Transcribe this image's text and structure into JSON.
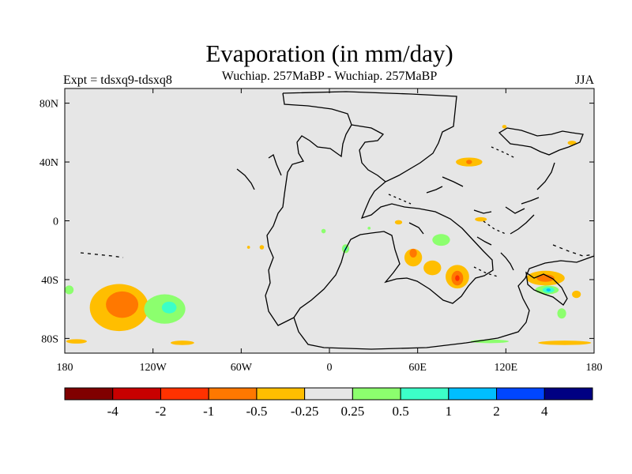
{
  "chart_data": {
    "type": "heatmap",
    "title": "Evaporation (in mm/day)",
    "subtitle": "Wuchiap. 257MaBP - Wuchiap. 257MaBP",
    "left_label": "Expt = tdsxq9-tdsxq8",
    "right_label": "JJA",
    "x_axis": {
      "range": [
        -180,
        180
      ],
      "ticks": [
        {
          "value": -180,
          "label": "180"
        },
        {
          "value": -120,
          "label": "120W"
        },
        {
          "value": -60,
          "label": "60W"
        },
        {
          "value": 0,
          "label": "0"
        },
        {
          "value": 60,
          "label": "60E"
        },
        {
          "value": 120,
          "label": "120E"
        },
        {
          "value": 180,
          "label": "180"
        }
      ]
    },
    "y_axis": {
      "range": [
        -90,
        90
      ],
      "ticks": [
        {
          "value": 80,
          "label": "80N"
        },
        {
          "value": 40,
          "label": "40N"
        },
        {
          "value": 0,
          "label": "0"
        },
        {
          "value": -40,
          "label": "40S"
        },
        {
          "value": -80,
          "label": "80S"
        }
      ]
    },
    "colorbar": {
      "colors": [
        "#800000",
        "#c80000",
        "#ff3200",
        "#ff7800",
        "#ffbe00",
        "#e6e6e6",
        "#8cff6e",
        "#3cffc8",
        "#00beff",
        "#0046ff",
        "#000082"
      ],
      "labels": [
        "-4",
        "-2",
        "-1",
        "-0.5",
        "-0.25",
        "0.25",
        "0.5",
        "1",
        "2",
        "4"
      ]
    },
    "background_color": "#e6e6e6",
    "anomalies": [
      {
        "lon": -143,
        "lat": -59,
        "level": -0.3,
        "rx": 20,
        "ry": 16
      },
      {
        "lon": -141,
        "lat": -57,
        "level": -0.6,
        "rx": 11,
        "ry": 9
      },
      {
        "lon": -112,
        "lat": -60,
        "level": 0.3,
        "rx": 14,
        "ry": 10
      },
      {
        "lon": -109,
        "lat": -59,
        "level": 0.6,
        "rx": 5,
        "ry": 4
      },
      {
        "lon": -172,
        "lat": -82,
        "level": -0.3,
        "rx": 7,
        "ry": 1.5
      },
      {
        "lon": -100,
        "lat": -83,
        "level": -0.3,
        "rx": 8,
        "ry": 1.5
      },
      {
        "lon": -177,
        "lat": -47,
        "level": 0.3,
        "rx": 3,
        "ry": 3
      },
      {
        "lon": -46,
        "lat": -18,
        "level": -0.3,
        "rx": 1.5,
        "ry": 1.5
      },
      {
        "lon": -4,
        "lat": -7,
        "level": 0.3,
        "rx": 1.5,
        "ry": 1.5
      },
      {
        "lon": 11,
        "lat": -19,
        "level": 0.3,
        "rx": 2.5,
        "ry": 3
      },
      {
        "lon": 11,
        "lat": -19,
        "level": 0.6,
        "rx": 1,
        "ry": 1.5
      },
      {
        "lon": 27,
        "lat": -5,
        "level": 0.3,
        "rx": 1,
        "ry": 1
      },
      {
        "lon": 57,
        "lat": -25,
        "level": -0.3,
        "rx": 6,
        "ry": 6
      },
      {
        "lon": 57,
        "lat": -22,
        "level": -0.6,
        "rx": 2.5,
        "ry": 3
      },
      {
        "lon": 70,
        "lat": -32,
        "level": -0.3,
        "rx": 6,
        "ry": 5
      },
      {
        "lon": 87,
        "lat": -38,
        "level": -0.3,
        "rx": 8,
        "ry": 8
      },
      {
        "lon": 87,
        "lat": -39,
        "level": -0.6,
        "rx": 4,
        "ry": 5
      },
      {
        "lon": 87,
        "lat": -39,
        "level": -1.2,
        "rx": 1.5,
        "ry": 2
      },
      {
        "lon": 76,
        "lat": -13,
        "level": 0.3,
        "rx": 6,
        "ry": 4
      },
      {
        "lon": 103,
        "lat": 1,
        "level": -0.3,
        "rx": 4,
        "ry": 1.5
      },
      {
        "lon": 47,
        "lat": -1,
        "level": -0.3,
        "rx": 2.5,
        "ry": 1.5
      },
      {
        "lon": 95,
        "lat": 40,
        "level": -0.3,
        "rx": 9,
        "ry": 3
      },
      {
        "lon": 95,
        "lat": 40,
        "level": -0.6,
        "rx": 2,
        "ry": 1.5
      },
      {
        "lon": 147,
        "lat": -39,
        "level": -0.3,
        "rx": 13,
        "ry": 5
      },
      {
        "lon": 147,
        "lat": -39,
        "level": -0.6,
        "rx": 6,
        "ry": 2.5
      },
      {
        "lon": 148,
        "lat": -47,
        "level": 0.3,
        "rx": 8,
        "ry": 3
      },
      {
        "lon": 149,
        "lat": -47,
        "level": 0.6,
        "rx": 4,
        "ry": 2
      },
      {
        "lon": 149,
        "lat": -47,
        "level": 1.2,
        "rx": 1.5,
        "ry": 1
      },
      {
        "lon": 158,
        "lat": -63,
        "level": 0.3,
        "rx": 3,
        "ry": 3.5
      },
      {
        "lon": 168,
        "lat": -50,
        "level": -0.3,
        "rx": 3,
        "ry": 2.5
      },
      {
        "lon": 165,
        "lat": 53,
        "level": -0.3,
        "rx": 3,
        "ry": 1.5
      },
      {
        "lon": 119,
        "lat": 64,
        "level": -0.3,
        "rx": 1.5,
        "ry": 1.2
      },
      {
        "lon": 109,
        "lat": -82,
        "level": 0.3,
        "rx": 13,
        "ry": 1.2
      },
      {
        "lon": 160,
        "lat": -83,
        "level": -0.3,
        "rx": 18,
        "ry": 1.5
      },
      {
        "lon": -55,
        "lat": -18,
        "level": -0.3,
        "rx": 1,
        "ry": 1
      }
    ]
  }
}
